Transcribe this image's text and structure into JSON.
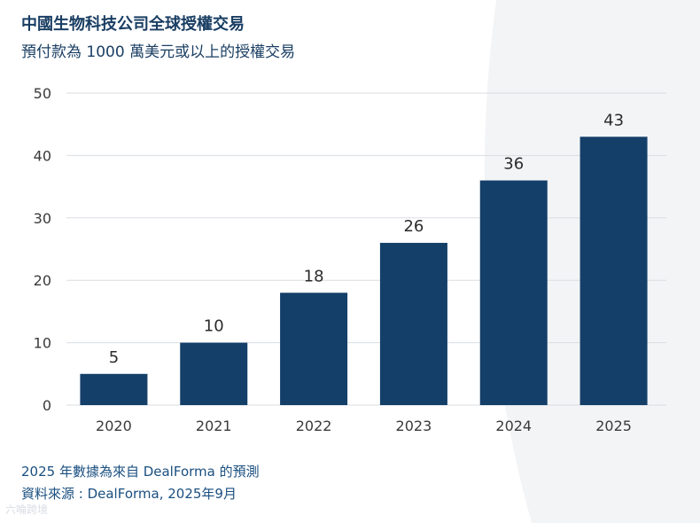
{
  "header": {
    "title": "中國生物科技公司全球授權交易",
    "subtitle": "預付款為 1000 萬美元或以上的授權交易"
  },
  "footer": {
    "note": "2025 年數據為來自 DealForma 的預測",
    "source": "資料來源 : DealForma, 2025年9月"
  },
  "watermark": {
    "text": "六㖮跨境"
  },
  "colors": {
    "bar": "#143f69",
    "grid": "#d9dde2",
    "axis_text": "#3a3a3a",
    "label_text": "#2b2b2b",
    "arc": "#f3f4f6"
  },
  "chart_data": {
    "type": "bar",
    "title": "中國生物科技公司全球授權交易",
    "subtitle": "預付款為 1000 萬美元或以上的授權交易",
    "categories": [
      "2020",
      "2021",
      "2022",
      "2023",
      "2024",
      "2025"
    ],
    "values": [
      5,
      10,
      18,
      26,
      36,
      43
    ],
    "xlabel": "",
    "ylabel": "",
    "ylim": [
      0,
      50
    ],
    "yticks": [
      0,
      10,
      20,
      30,
      40,
      50
    ],
    "grid": true,
    "data_labels": true
  }
}
